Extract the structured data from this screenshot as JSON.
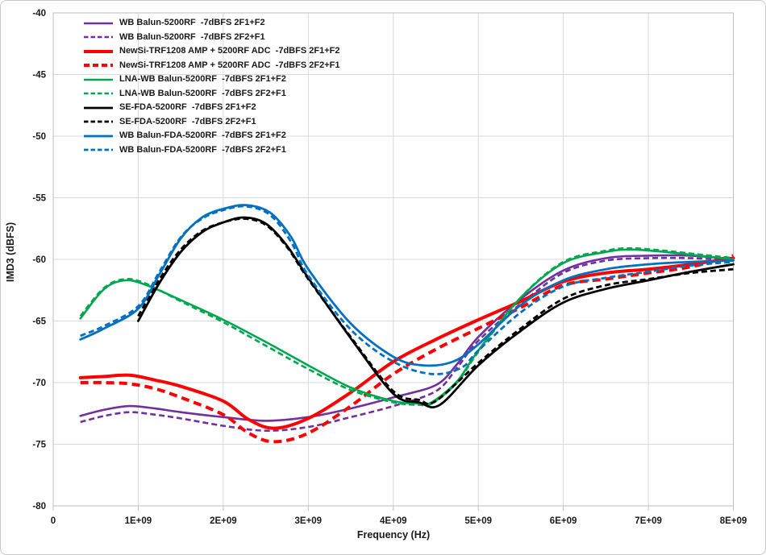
{
  "chart_data": {
    "type": "line",
    "title": "",
    "xlabel": "Frequency (Hz)",
    "ylabel": "IMD3 (dBFS)",
    "xlim_hz": [
      0,
      8000000000
    ],
    "ylim_dbfs": [
      -80,
      -40
    ],
    "x_unit_hz": 1000000000,
    "grid": true,
    "legend_position": "top-left",
    "x_ticks_ghz": [
      0,
      1,
      2,
      3,
      4,
      5,
      6,
      7,
      8
    ],
    "x_tick_labels": [
      "0",
      "1E+09",
      "2E+09",
      "3E+09",
      "4E+09",
      "5E+09",
      "6E+09",
      "7E+09",
      "8E+09"
    ],
    "y_ticks": [
      -40,
      -45,
      -50,
      -55,
      -60,
      -65,
      -70,
      -75,
      -80
    ],
    "y_tick_labels": [
      "-40",
      "-45",
      "-50",
      "-55",
      "-60",
      "-65",
      "-70",
      "-75",
      "-80"
    ],
    "colors": {
      "grid": "#d9d9d9",
      "axis": "#bfbfbf",
      "text": "#1a1a1a"
    },
    "series": [
      {
        "name": "WB Balun-5200RF  -7dBFS 2F1+F2",
        "color": "#7030A0",
        "line_style": "solid",
        "width": 2.6,
        "points_ghz_dbfs": [
          [
            0.32,
            -72.7
          ],
          [
            0.6,
            -72.2
          ],
          [
            0.9,
            -71.9
          ],
          [
            1.2,
            -72.1
          ],
          [
            1.5,
            -72.4
          ],
          [
            2.0,
            -72.8
          ],
          [
            2.5,
            -73.1
          ],
          [
            3.0,
            -72.8
          ],
          [
            3.5,
            -72.1
          ],
          [
            4.0,
            -71.2
          ],
          [
            4.5,
            -70.2
          ],
          [
            4.75,
            -68.5
          ],
          [
            5.0,
            -66.3
          ],
          [
            5.5,
            -63.2
          ],
          [
            6.0,
            -60.9
          ],
          [
            6.5,
            -59.9
          ],
          [
            7.0,
            -59.7
          ],
          [
            7.5,
            -59.7
          ],
          [
            8.0,
            -60.0
          ]
        ]
      },
      {
        "name": "WB Balun-5200RF  -7dBFS 2F2+F1",
        "color": "#7030A0",
        "line_style": "dashed",
        "width": 2.6,
        "points_ghz_dbfs": [
          [
            0.32,
            -73.2
          ],
          [
            0.6,
            -72.7
          ],
          [
            0.9,
            -72.4
          ],
          [
            1.2,
            -72.6
          ],
          [
            1.5,
            -72.9
          ],
          [
            2.0,
            -73.5
          ],
          [
            2.5,
            -73.9
          ],
          [
            3.0,
            -73.6
          ],
          [
            3.5,
            -72.8
          ],
          [
            4.0,
            -71.9
          ],
          [
            4.5,
            -70.7
          ],
          [
            4.75,
            -68.8
          ],
          [
            5.0,
            -66.6
          ],
          [
            5.5,
            -63.6
          ],
          [
            6.0,
            -61.1
          ],
          [
            6.5,
            -60.1
          ],
          [
            7.0,
            -59.9
          ],
          [
            7.5,
            -59.9
          ],
          [
            8.0,
            -60.1
          ]
        ]
      },
      {
        "name": "NewSi-TRF1208 AMP + 5200RF ADC  -7dBFS 2F1+F2",
        "color": "#FF0000",
        "line_style": "solid",
        "width": 4,
        "points_ghz_dbfs": [
          [
            0.32,
            -69.6
          ],
          [
            0.6,
            -69.5
          ],
          [
            0.9,
            -69.4
          ],
          [
            1.2,
            -69.8
          ],
          [
            1.5,
            -70.3
          ],
          [
            2.0,
            -71.5
          ],
          [
            2.3,
            -73.0
          ],
          [
            2.6,
            -73.7
          ],
          [
            3.0,
            -72.9
          ],
          [
            3.5,
            -70.8
          ],
          [
            4.0,
            -68.3
          ],
          [
            4.5,
            -66.5
          ],
          [
            5.0,
            -64.9
          ],
          [
            5.5,
            -63.4
          ],
          [
            6.0,
            -61.8
          ],
          [
            6.5,
            -61.1
          ],
          [
            7.0,
            -60.8
          ],
          [
            7.5,
            -60.4
          ],
          [
            8.0,
            -59.9
          ]
        ]
      },
      {
        "name": "NewSi-TRF1208 AMP + 5200RF ADC  -7dBFS 2F2+F1",
        "color": "#FF0000",
        "line_style": "dashed",
        "width": 4,
        "points_ghz_dbfs": [
          [
            0.32,
            -70.0
          ],
          [
            0.6,
            -70.0
          ],
          [
            0.9,
            -70.1
          ],
          [
            1.2,
            -70.5
          ],
          [
            1.5,
            -71.2
          ],
          [
            2.0,
            -72.6
          ],
          [
            2.3,
            -74.1
          ],
          [
            2.6,
            -74.8
          ],
          [
            3.0,
            -74.1
          ],
          [
            3.5,
            -71.9
          ],
          [
            4.0,
            -69.3
          ],
          [
            4.5,
            -67.3
          ],
          [
            5.0,
            -65.6
          ],
          [
            5.5,
            -63.9
          ],
          [
            6.0,
            -62.1
          ],
          [
            6.5,
            -61.6
          ],
          [
            7.0,
            -61.1
          ],
          [
            7.5,
            -60.6
          ],
          [
            8.0,
            -59.7
          ]
        ]
      },
      {
        "name": "LNA-WB Balun-5200RF  -7dBFS 2F1+F2",
        "color": "#00A650",
        "line_style": "solid",
        "width": 2.6,
        "points_ghz_dbfs": [
          [
            0.32,
            -64.8
          ],
          [
            0.6,
            -62.4
          ],
          [
            0.85,
            -61.7
          ],
          [
            1.1,
            -62.1
          ],
          [
            1.5,
            -63.3
          ],
          [
            2.0,
            -64.9
          ],
          [
            2.5,
            -66.7
          ],
          [
            3.0,
            -68.6
          ],
          [
            3.5,
            -70.4
          ],
          [
            4.0,
            -71.5
          ],
          [
            4.3,
            -71.7
          ],
          [
            4.45,
            -71.6
          ],
          [
            4.75,
            -69.9
          ],
          [
            5.0,
            -67.4
          ],
          [
            5.5,
            -63.1
          ],
          [
            6.0,
            -60.3
          ],
          [
            6.5,
            -59.4
          ],
          [
            6.8,
            -59.2
          ],
          [
            7.2,
            -59.4
          ],
          [
            7.6,
            -59.7
          ],
          [
            8.0,
            -60.0
          ]
        ]
      },
      {
        "name": "LNA-WB Balun-5200RF  -7dBFS 2F2+F1",
        "color": "#00A650",
        "line_style": "dashed",
        "width": 2.6,
        "points_ghz_dbfs": [
          [
            0.32,
            -64.6
          ],
          [
            0.6,
            -62.3
          ],
          [
            0.85,
            -61.6
          ],
          [
            1.1,
            -62.0
          ],
          [
            1.5,
            -63.4
          ],
          [
            2.0,
            -65.1
          ],
          [
            2.5,
            -67.0
          ],
          [
            3.0,
            -68.9
          ],
          [
            3.5,
            -70.6
          ],
          [
            4.0,
            -71.6
          ],
          [
            4.3,
            -71.8
          ],
          [
            4.45,
            -71.7
          ],
          [
            4.75,
            -70.0
          ],
          [
            5.0,
            -67.5
          ],
          [
            5.5,
            -63.1
          ],
          [
            6.0,
            -60.2
          ],
          [
            6.5,
            -59.3
          ],
          [
            6.8,
            -59.1
          ],
          [
            7.2,
            -59.3
          ],
          [
            7.6,
            -59.6
          ],
          [
            8.0,
            -59.9
          ]
        ]
      },
      {
        "name": "SE-FDA-5200RF  -7dBFS 2F1+F2",
        "color": "#000000",
        "line_style": "solid",
        "width": 2.8,
        "points_ghz_dbfs": [
          [
            1.0,
            -65.0
          ],
          [
            1.25,
            -61.9
          ],
          [
            1.5,
            -59.4
          ],
          [
            1.75,
            -57.8
          ],
          [
            2.0,
            -57.0
          ],
          [
            2.25,
            -56.6
          ],
          [
            2.5,
            -57.1
          ],
          [
            2.75,
            -58.9
          ],
          [
            3.0,
            -61.5
          ],
          [
            3.5,
            -66.4
          ],
          [
            4.0,
            -70.9
          ],
          [
            4.3,
            -71.6
          ],
          [
            4.55,
            -71.8
          ],
          [
            5.0,
            -68.6
          ],
          [
            5.5,
            -65.8
          ],
          [
            6.0,
            -63.5
          ],
          [
            6.5,
            -62.4
          ],
          [
            7.0,
            -61.7
          ],
          [
            7.5,
            -61.0
          ],
          [
            8.0,
            -60.4
          ]
        ]
      },
      {
        "name": "SE-FDA-5200RF  -7dBFS 2F2+F1",
        "color": "#000000",
        "line_style": "dashed",
        "width": 2.8,
        "points_ghz_dbfs": [
          [
            1.0,
            -64.6
          ],
          [
            1.25,
            -61.6
          ],
          [
            1.5,
            -59.2
          ],
          [
            1.75,
            -57.7
          ],
          [
            2.0,
            -57.0
          ],
          [
            2.25,
            -56.7
          ],
          [
            2.5,
            -57.2
          ],
          [
            2.75,
            -59.0
          ],
          [
            3.0,
            -61.6
          ],
          [
            3.5,
            -66.3
          ],
          [
            4.0,
            -70.7
          ],
          [
            4.3,
            -71.4
          ],
          [
            4.5,
            -71.5
          ],
          [
            5.0,
            -68.4
          ],
          [
            5.5,
            -65.6
          ],
          [
            6.0,
            -63.2
          ],
          [
            6.5,
            -62.1
          ],
          [
            7.0,
            -61.6
          ],
          [
            7.5,
            -61.1
          ],
          [
            8.0,
            -60.8
          ]
        ]
      },
      {
        "name": "WB Balun-FDA-5200RF  -7dBFS 2F1+F2",
        "color": "#0070C0",
        "line_style": "solid",
        "width": 2.8,
        "points_ghz_dbfs": [
          [
            0.32,
            -66.5
          ],
          [
            0.6,
            -65.6
          ],
          [
            1.0,
            -64.0
          ],
          [
            1.25,
            -61.2
          ],
          [
            1.5,
            -58.3
          ],
          [
            1.75,
            -56.6
          ],
          [
            2.0,
            -55.9
          ],
          [
            2.27,
            -55.6
          ],
          [
            2.55,
            -56.2
          ],
          [
            2.8,
            -58.2
          ],
          [
            3.0,
            -60.8
          ],
          [
            3.5,
            -65.2
          ],
          [
            4.0,
            -67.9
          ],
          [
            4.35,
            -68.6
          ],
          [
            4.7,
            -68.3
          ],
          [
            5.0,
            -66.9
          ],
          [
            5.5,
            -63.7
          ],
          [
            6.0,
            -61.7
          ],
          [
            6.5,
            -60.8
          ],
          [
            7.0,
            -60.4
          ],
          [
            7.5,
            -60.2
          ],
          [
            8.0,
            -60.1
          ]
        ]
      },
      {
        "name": "WB Balun-FDA-5200RF  -7dBFS 2F2+F1",
        "color": "#0070C0",
        "line_style": "dashed",
        "width": 2.8,
        "points_ghz_dbfs": [
          [
            0.32,
            -66.2
          ],
          [
            0.6,
            -65.4
          ],
          [
            1.0,
            -63.8
          ],
          [
            1.25,
            -61.0
          ],
          [
            1.5,
            -58.2
          ],
          [
            1.75,
            -56.7
          ],
          [
            2.0,
            -56.0
          ],
          [
            2.27,
            -55.7
          ],
          [
            2.55,
            -56.4
          ],
          [
            2.8,
            -58.6
          ],
          [
            3.0,
            -61.3
          ],
          [
            3.5,
            -65.7
          ],
          [
            4.0,
            -68.3
          ],
          [
            4.45,
            -69.3
          ],
          [
            4.8,
            -68.8
          ],
          [
            5.0,
            -67.4
          ],
          [
            5.5,
            -64.3
          ],
          [
            6.0,
            -62.2
          ],
          [
            6.5,
            -61.5
          ],
          [
            7.0,
            -61.0
          ],
          [
            7.5,
            -60.5
          ],
          [
            8.0,
            -60.2
          ]
        ]
      }
    ]
  }
}
